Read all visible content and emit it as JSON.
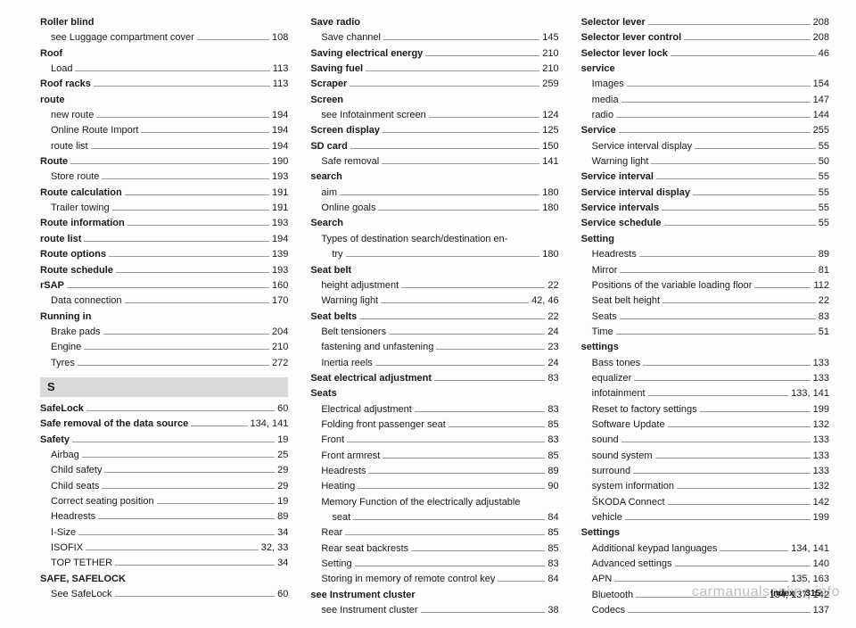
{
  "columns": [
    [
      {
        "type": "head",
        "bold": true,
        "text": "Roller blind"
      },
      {
        "type": "entry",
        "indent": 1,
        "text": "see Luggage compartment cover",
        "page": "108"
      },
      {
        "type": "head",
        "bold": true,
        "text": "Roof"
      },
      {
        "type": "entry",
        "indent": 1,
        "text": "Load",
        "page": "113"
      },
      {
        "type": "entry",
        "bold": true,
        "text": "Roof racks",
        "page": "113"
      },
      {
        "type": "head",
        "bold": true,
        "text": "route"
      },
      {
        "type": "entry",
        "indent": 1,
        "text": "new route",
        "page": "194"
      },
      {
        "type": "entry",
        "indent": 1,
        "text": "Online Route Import",
        "page": "194"
      },
      {
        "type": "entry",
        "indent": 1,
        "text": "route list",
        "page": "194"
      },
      {
        "type": "entry",
        "bold": true,
        "text": "Route",
        "page": "190"
      },
      {
        "type": "entry",
        "indent": 1,
        "text": "Store route",
        "page": "193"
      },
      {
        "type": "entry",
        "bold": true,
        "text": "Route calculation",
        "page": "191"
      },
      {
        "type": "entry",
        "indent": 1,
        "text": "Trailer towing",
        "page": "191"
      },
      {
        "type": "entry",
        "bold": true,
        "text": "Route information",
        "page": "193"
      },
      {
        "type": "entry",
        "bold": true,
        "text": "route list",
        "page": "194"
      },
      {
        "type": "entry",
        "bold": true,
        "text": "Route options",
        "page": "139"
      },
      {
        "type": "entry",
        "bold": true,
        "text": "Route schedule",
        "page": "193"
      },
      {
        "type": "entry",
        "bold": true,
        "text": "rSAP",
        "page": "160"
      },
      {
        "type": "entry",
        "indent": 1,
        "text": "Data connection",
        "page": "170"
      },
      {
        "type": "head",
        "bold": true,
        "text": "Running in"
      },
      {
        "type": "entry",
        "indent": 1,
        "text": "Brake pads",
        "page": "204"
      },
      {
        "type": "entry",
        "indent": 1,
        "text": "Engine",
        "page": "210"
      },
      {
        "type": "entry",
        "indent": 1,
        "text": "Tyres",
        "page": "272"
      },
      {
        "type": "section",
        "text": "S"
      },
      {
        "type": "entry",
        "bold": true,
        "text": "SafeLock",
        "page": "60"
      },
      {
        "type": "entry",
        "bold": true,
        "text": "Safe removal of the data source",
        "page": "134, 141"
      },
      {
        "type": "entry",
        "bold": true,
        "text": "Safety",
        "page": "19"
      },
      {
        "type": "entry",
        "indent": 1,
        "text": "Airbag",
        "page": "25"
      },
      {
        "type": "entry",
        "indent": 1,
        "text": "Child safety",
        "page": "29"
      },
      {
        "type": "entry",
        "indent": 1,
        "text": "Child seats",
        "page": "29"
      },
      {
        "type": "entry",
        "indent": 1,
        "text": "Correct seating position",
        "page": "19"
      },
      {
        "type": "entry",
        "indent": 1,
        "text": "Headrests",
        "page": "89"
      },
      {
        "type": "entry",
        "indent": 1,
        "text": "I-Size",
        "page": "34"
      },
      {
        "type": "entry",
        "indent": 1,
        "text": "ISOFIX",
        "page": "32, 33"
      },
      {
        "type": "entry",
        "indent": 1,
        "text": "TOP TETHER",
        "page": "34"
      },
      {
        "type": "head",
        "bold": true,
        "text": "SAFE, SAFELOCK"
      },
      {
        "type": "entry",
        "indent": 1,
        "text": "See SafeLock",
        "page": "60"
      }
    ],
    [
      {
        "type": "head",
        "bold": true,
        "text": "Save radio"
      },
      {
        "type": "entry",
        "indent": 1,
        "text": "Save channel",
        "page": "145"
      },
      {
        "type": "entry",
        "bold": true,
        "text": "Saving electrical energy",
        "page": "210"
      },
      {
        "type": "entry",
        "bold": true,
        "text": "Saving fuel",
        "page": "210"
      },
      {
        "type": "entry",
        "bold": true,
        "text": "Scraper",
        "page": "259"
      },
      {
        "type": "head",
        "bold": true,
        "text": "Screen"
      },
      {
        "type": "entry",
        "indent": 1,
        "text": "see Infotainment screen",
        "page": "124"
      },
      {
        "type": "entry",
        "bold": true,
        "text": "Screen display",
        "page": "125"
      },
      {
        "type": "entry",
        "bold": true,
        "text": "SD card",
        "page": "150"
      },
      {
        "type": "entry",
        "indent": 1,
        "text": "Safe removal",
        "page": "141"
      },
      {
        "type": "head",
        "bold": true,
        "text": "search"
      },
      {
        "type": "entry",
        "indent": 1,
        "text": "aim",
        "page": "180"
      },
      {
        "type": "entry",
        "indent": 1,
        "text": "Online goals",
        "page": "180"
      },
      {
        "type": "head",
        "bold": true,
        "text": "Search"
      },
      {
        "type": "head",
        "indent": 1,
        "text": "Types of destination search/destination en-"
      },
      {
        "type": "entry",
        "indent": 2,
        "text": "try",
        "page": "180"
      },
      {
        "type": "head",
        "bold": true,
        "text": "Seat belt"
      },
      {
        "type": "entry",
        "indent": 1,
        "text": "height adjustment",
        "page": "22"
      },
      {
        "type": "entry",
        "indent": 1,
        "text": "Warning light",
        "page": "42, 46"
      },
      {
        "type": "entry",
        "bold": true,
        "text": "Seat belts",
        "page": "22"
      },
      {
        "type": "entry",
        "indent": 1,
        "text": "Belt tensioners",
        "page": "24"
      },
      {
        "type": "entry",
        "indent": 1,
        "text": "fastening and unfastening",
        "page": "23"
      },
      {
        "type": "entry",
        "indent": 1,
        "text": "Inertia reels",
        "page": "24"
      },
      {
        "type": "entry",
        "bold": true,
        "text": "Seat electrical adjustment",
        "page": "83"
      },
      {
        "type": "head",
        "bold": true,
        "text": "Seats"
      },
      {
        "type": "entry",
        "indent": 1,
        "text": "Electrical adjustment",
        "page": "83"
      },
      {
        "type": "entry",
        "indent": 1,
        "text": "Folding front passenger seat",
        "page": "85"
      },
      {
        "type": "entry",
        "indent": 1,
        "text": "Front",
        "page": "83"
      },
      {
        "type": "entry",
        "indent": 1,
        "text": "Front armrest",
        "page": "85"
      },
      {
        "type": "entry",
        "indent": 1,
        "text": "Headrests",
        "page": "89"
      },
      {
        "type": "entry",
        "indent": 1,
        "text": "Heating",
        "page": "90"
      },
      {
        "type": "head",
        "indent": 1,
        "text": "Memory Function of the electrically adjustable"
      },
      {
        "type": "entry",
        "indent": 2,
        "text": "seat",
        "page": "84"
      },
      {
        "type": "entry",
        "indent": 1,
        "text": "Rear",
        "page": "85"
      },
      {
        "type": "entry",
        "indent": 1,
        "text": "Rear seat backrests",
        "page": "85"
      },
      {
        "type": "entry",
        "indent": 1,
        "text": "Setting",
        "page": "83"
      },
      {
        "type": "entry",
        "indent": 1,
        "text": "Storing in memory of remote control key",
        "page": "84"
      },
      {
        "type": "head",
        "bold": true,
        "text": "see Instrument cluster"
      },
      {
        "type": "entry",
        "indent": 1,
        "text": "see Instrument cluster",
        "page": "38"
      }
    ],
    [
      {
        "type": "entry",
        "bold": true,
        "text": "Selector lever",
        "page": "208"
      },
      {
        "type": "entry",
        "bold": true,
        "text": "Selector lever control",
        "page": "208"
      },
      {
        "type": "entry",
        "bold": true,
        "text": "Selector lever lock",
        "page": "46"
      },
      {
        "type": "head",
        "bold": true,
        "text": "service"
      },
      {
        "type": "entry",
        "indent": 1,
        "text": "Images",
        "page": "154"
      },
      {
        "type": "entry",
        "indent": 1,
        "text": "media",
        "page": "147"
      },
      {
        "type": "entry",
        "indent": 1,
        "text": "radio",
        "page": "144"
      },
      {
        "type": "entry",
        "bold": true,
        "text": "Service",
        "page": "255"
      },
      {
        "type": "entry",
        "indent": 1,
        "text": "Service interval display",
        "page": "55"
      },
      {
        "type": "entry",
        "indent": 1,
        "text": "Warning light",
        "page": "50"
      },
      {
        "type": "entry",
        "bold": true,
        "text": "Service interval",
        "page": "55"
      },
      {
        "type": "entry",
        "bold": true,
        "text": "Service interval display",
        "page": "55"
      },
      {
        "type": "entry",
        "bold": true,
        "text": "Service intervals",
        "page": "55"
      },
      {
        "type": "entry",
        "bold": true,
        "text": "Service schedule",
        "page": "55"
      },
      {
        "type": "head",
        "bold": true,
        "text": "Setting"
      },
      {
        "type": "entry",
        "indent": 1,
        "text": "Headrests",
        "page": "89"
      },
      {
        "type": "entry",
        "indent": 1,
        "text": "Mirror",
        "page": "81"
      },
      {
        "type": "entry",
        "indent": 1,
        "text": "Positions of the variable loading floor",
        "page": "112"
      },
      {
        "type": "entry",
        "indent": 1,
        "text": "Seat belt height",
        "page": "22"
      },
      {
        "type": "entry",
        "indent": 1,
        "text": "Seats",
        "page": "83"
      },
      {
        "type": "entry",
        "indent": 1,
        "text": "Time",
        "page": "51"
      },
      {
        "type": "head",
        "bold": true,
        "text": "settings"
      },
      {
        "type": "entry",
        "indent": 1,
        "text": "Bass tones",
        "page": "133"
      },
      {
        "type": "entry",
        "indent": 1,
        "text": "equalizer",
        "page": "133"
      },
      {
        "type": "entry",
        "indent": 1,
        "text": "infotainment",
        "page": "133, 141"
      },
      {
        "type": "entry",
        "indent": 1,
        "text": "Reset to factory settings",
        "page": "199"
      },
      {
        "type": "entry",
        "indent": 1,
        "text": "Software Update",
        "page": "132"
      },
      {
        "type": "entry",
        "indent": 1,
        "text": "sound",
        "page": "133"
      },
      {
        "type": "entry",
        "indent": 1,
        "text": "sound system",
        "page": "133"
      },
      {
        "type": "entry",
        "indent": 1,
        "text": "surround",
        "page": "133"
      },
      {
        "type": "entry",
        "indent": 1,
        "text": "system information",
        "page": "132"
      },
      {
        "type": "entry",
        "indent": 1,
        "text": "ŠKODA Connect",
        "page": "142"
      },
      {
        "type": "entry",
        "indent": 1,
        "text": "vehicle",
        "page": "199"
      },
      {
        "type": "head",
        "bold": true,
        "text": "Settings"
      },
      {
        "type": "entry",
        "indent": 1,
        "text": "Additional keypad languages",
        "page": "134, 141"
      },
      {
        "type": "entry",
        "indent": 1,
        "text": "Advanced settings",
        "page": "140"
      },
      {
        "type": "entry",
        "indent": 1,
        "text": "APN",
        "page": "135, 163"
      },
      {
        "type": "entry",
        "indent": 1,
        "text": "Bluetooth",
        "page": "134, 137, 142"
      },
      {
        "type": "entry",
        "indent": 1,
        "text": "Codecs",
        "page": "137"
      }
    ]
  ],
  "footer": {
    "label": "Index",
    "page": "315"
  },
  "watermark": "carmanualsonline.info"
}
